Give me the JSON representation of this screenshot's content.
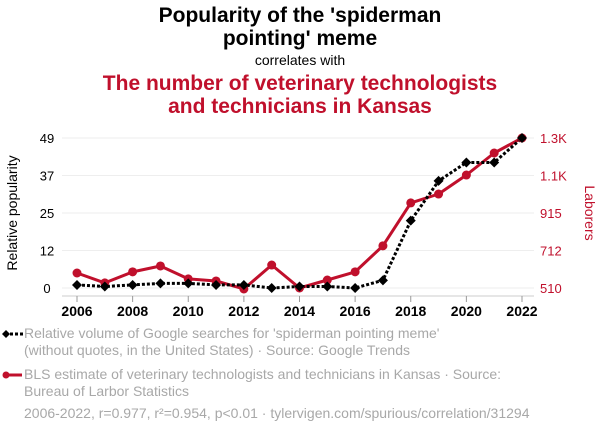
{
  "header": {
    "title_line1": "Popularity of the 'spiderman",
    "title_line2": "pointing' meme",
    "correlates": "correlates with",
    "subtitle_line1": "The number of veterinary technologists",
    "subtitle_line2": "and technicians in Kansas"
  },
  "legend": {
    "series1_line1": "Relative volume of Google searches for 'spiderman pointing meme'",
    "series1_line2": "(without quotes, in the United States) · Source: Google Trends",
    "series2_line1": "BLS estimate of veterinary technologists and technicians in Kansas · Source:",
    "series2_line2": "Bureau of Larbor Statistics"
  },
  "footer": "2006-2022, r=0.977, r²=0.954, p<0.01 · tylervigen.com/spurious/correlation/31294",
  "colors": {
    "series1": "#000000",
    "series2": "#c0102c",
    "grid": "#eeeeee",
    "muted": "#a8a8a8"
  },
  "chart_data": {
    "type": "line",
    "title": "Popularity of the 'spiderman pointing' meme correlates with The number of veterinary technologists and technicians in Kansas",
    "x": [
      2006,
      2007,
      2008,
      2009,
      2010,
      2011,
      2012,
      2013,
      2014,
      2015,
      2016,
      2017,
      2018,
      2019,
      2020,
      2021,
      2022
    ],
    "xticks": [
      "2006",
      "2008",
      "2010",
      "2012",
      "2014",
      "2016",
      "2018",
      "2020",
      "2022"
    ],
    "ylabel_left": "Relative popularity",
    "ylabel_right": "Laborers",
    "yticks_left": [
      "0",
      "12",
      "25",
      "37",
      "49"
    ],
    "yticks_right": [
      "510",
      "712",
      "915",
      "1.1K",
      "1.3K"
    ],
    "ylim_left": [
      0,
      49
    ],
    "ylim_right": [
      510,
      1300
    ],
    "grid": true,
    "series": [
      {
        "name": "Relative volume of Google searches for 'spiderman pointing meme'",
        "axis": "left",
        "style": "dotted",
        "marker": "diamond",
        "values": [
          1,
          0.5,
          1,
          1.5,
          1.5,
          1,
          1,
          0,
          0.5,
          0.5,
          0,
          2.5,
          22,
          35,
          41,
          41,
          49
        ]
      },
      {
        "name": "BLS estimate of veterinary technologists and technicians in Kansas",
        "axis": "right",
        "style": "solid",
        "marker": "circle",
        "values": [
          589,
          537,
          595,
          626,
          558,
          547,
          505,
          631,
          510,
          552,
          595,
          732,
          958,
          1005,
          1105,
          1221,
          1300
        ]
      }
    ]
  }
}
